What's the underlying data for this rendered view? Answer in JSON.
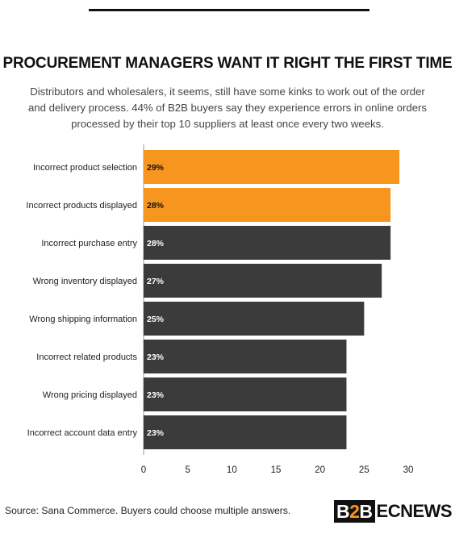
{
  "title": "PROCUREMENT MANAGERS WANT IT RIGHT THE FIRST TIME",
  "subtitle": "Distributors and wholesalers, it seems, still have some kinks to work out of the order and delivery process. 44% of B2B buyers say they experience errors in online orders processed by their top 10 suppliers at least once every two weeks.",
  "source": "Source: Sana Commerce. Buyers could choose multiple answers.",
  "logo": {
    "first": "B",
    "second": "2",
    "third": "B",
    "rest": "ECNEWS"
  },
  "colors": {
    "highlight": "#f6961f",
    "default": "#3b3b3b",
    "label_on_highlight": "#111111",
    "label_on_default": "#ffffff"
  },
  "chart_data": {
    "type": "bar",
    "orientation": "horizontal",
    "categories": [
      "Incorrect product selection",
      "Incorrect products displayed",
      "Incorrect purchase entry",
      "Wrong inventory displayed",
      "Wrong shipping information",
      "Incorrect related products",
      "Wrong pricing displayed",
      "Incorrect account data entry"
    ],
    "values": [
      29,
      28,
      28,
      27,
      25,
      23,
      23,
      23
    ],
    "value_labels": [
      "29%",
      "28%",
      "28%",
      "27%",
      "25%",
      "23%",
      "23%",
      "23%"
    ],
    "highlighted": [
      true,
      true,
      false,
      false,
      false,
      false,
      false,
      false
    ],
    "xlim": [
      0,
      30
    ],
    "xticks": [
      0,
      5,
      10,
      15,
      20,
      25,
      30
    ],
    "grid": false,
    "legend": "none"
  }
}
